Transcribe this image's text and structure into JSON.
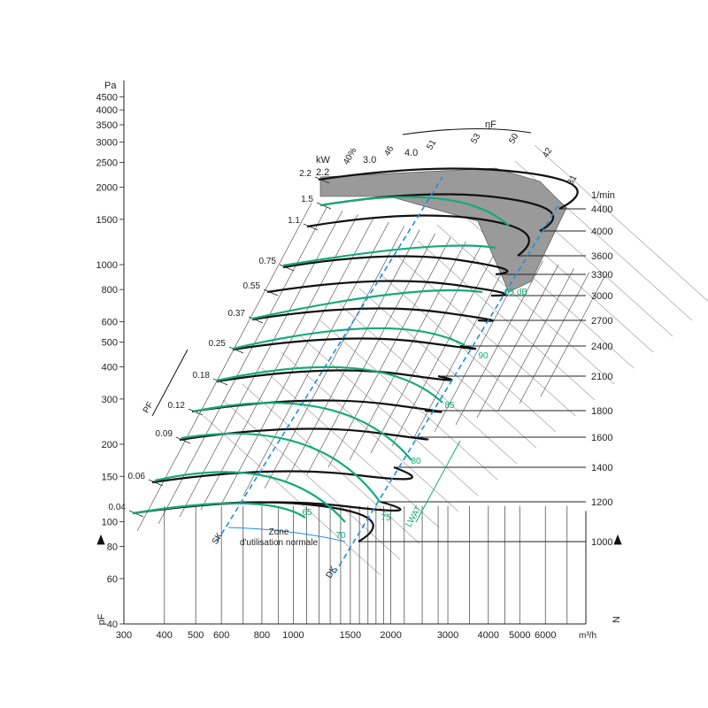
{
  "chart_data": {
    "type": "line",
    "title": "",
    "x_axis": {
      "label": "m³/h",
      "scale": "log",
      "range": [
        300,
        8000
      ],
      "tick_labels": [
        "300",
        "400",
        "500",
        "600",
        "800",
        "1000",
        "1500",
        "2000",
        "3000",
        "4000",
        "5000",
        "6000"
      ]
    },
    "y_axis_left": {
      "unit": "Pa",
      "label": "pF",
      "scale": "log",
      "range": [
        40,
        5000
      ],
      "tick_labels": [
        "40",
        "60",
        "80",
        "100",
        "150",
        "200",
        "300",
        "400",
        "500",
        "600",
        "800",
        "1000",
        "1500",
        "2000",
        "2500",
        "3000",
        "3500",
        "4000",
        "4500"
      ]
    },
    "y_axis_right": {
      "unit": "1/min",
      "label": "N",
      "tick_labels": [
        "4400",
        "4000",
        "3600",
        "3300",
        "3000",
        "2700",
        "2400",
        "2100",
        "1800",
        "1600",
        "1400",
        "1200",
        "1000"
      ]
    },
    "speed_curves": [
      {
        "rpm": 4400,
        "power_kw": "2.2"
      },
      {
        "rpm": 4000,
        "power_kw": "1.5"
      },
      {
        "rpm": 3600,
        "power_kw": "1.1"
      },
      {
        "rpm": 3300,
        "power_kw": "0.75"
      },
      {
        "rpm": 3000,
        "power_kw": "0.55"
      },
      {
        "rpm": 2700,
        "power_kw": "0.37"
      },
      {
        "rpm": 2400,
        "power_kw": "0.25"
      },
      {
        "rpm": 2100,
        "power_kw": "0.18"
      },
      {
        "rpm": 1800,
        "power_kw": "0.12"
      },
      {
        "rpm": 1600,
        "power_kw": "0.09"
      },
      {
        "rpm": 1400,
        "power_kw": "0.06"
      },
      {
        "rpm": 1200,
        "power_kw": "0.04"
      },
      {
        "rpm": 1000,
        "power_kw": ""
      }
    ],
    "power_scale_label": "kW",
    "upper_power_labels": [
      "3.0",
      "4.0"
    ],
    "efficiency_label": "ηF",
    "efficiency_lines": [
      "40%",
      "46",
      "51",
      "53",
      "50",
      "42",
      "31"
    ],
    "sound_level_lines": [
      "65",
      "70",
      "75",
      "80",
      "85",
      "90",
      "95 dB"
    ],
    "sound_label": "LWAT",
    "pressure_arrow_label": "PF",
    "limit_labels": [
      "SK",
      "DK"
    ],
    "zone_label": [
      "Zone",
      "d'utilisation normale"
    ],
    "colors": {
      "curve": "#111111",
      "efficiency": "#16a97c",
      "limit": "#1e8fe0",
      "shaded": "#9a9a9a"
    }
  }
}
